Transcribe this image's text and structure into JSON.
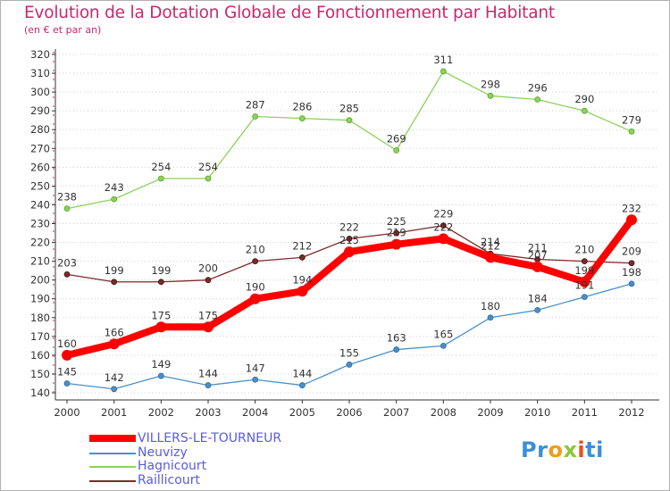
{
  "title": "Evolution de la Dotation Globale de Fonctionnement par Habitant",
  "subtitle": "(en € et par an)",
  "logo": {
    "p": "Pr",
    "o": "o",
    "x": "x",
    "i": "i",
    "t": "ti"
  },
  "colors": {
    "title": "#c8286e",
    "legend_text": "#5a5ae0",
    "axis": "#333333",
    "grid": "#cccccc",
    "villers": "#ff0000",
    "neuvizy": "#4a90c8",
    "hagnicourt": "#8bd25a",
    "raillicourt": "#7a2a2a"
  },
  "chart_data": {
    "type": "line",
    "title": "Evolution de la Dotation Globale de Fonctionnement par Habitant",
    "subtitle": "(en € et par an)",
    "x": [
      "2000",
      "2001",
      "2002",
      "2003",
      "2004",
      "2005",
      "2006",
      "2007",
      "2008",
      "2009",
      "2010",
      "2011",
      "2012"
    ],
    "ylim": [
      140,
      320
    ],
    "yticks": [
      140,
      150,
      160,
      170,
      180,
      190,
      200,
      210,
      220,
      230,
      240,
      250,
      260,
      270,
      280,
      290,
      300,
      310,
      320
    ],
    "grid": "horizontal dotted",
    "legend_position": "bottom-left",
    "series": [
      {
        "name": "VILLERS-LE-TOURNEUR",
        "color": "#ff0000",
        "width": 8,
        "values": [
          160,
          166,
          175,
          175,
          190,
          194,
          215,
          219,
          222,
          212,
          207,
          199,
          232
        ],
        "labels": [
          "160",
          "166",
          "175",
          "175",
          "190",
          "194",
          "215",
          "219",
          "222",
          "212",
          "207",
          "199",
          "232"
        ]
      },
      {
        "name": "Neuvizy",
        "color": "#4a90c8",
        "width": 1.3,
        "values": [
          145,
          142,
          149,
          144,
          147,
          144,
          155,
          163,
          165,
          180,
          184,
          191,
          198
        ],
        "labels": [
          "145",
          "142",
          "149",
          "144",
          "147",
          "144",
          "155",
          "163",
          "165",
          "180",
          "184",
          "191",
          "198"
        ]
      },
      {
        "name": "Hagnicourt",
        "color": "#8bd25a",
        "width": 1.3,
        "values": [
          238,
          243,
          254,
          254,
          287,
          286,
          285,
          269,
          311,
          298,
          296,
          290,
          279
        ],
        "labels": [
          "238",
          "243",
          "254",
          "254",
          "287",
          "286",
          "285",
          "269",
          "311",
          "298",
          "296",
          "290",
          "279"
        ]
      },
      {
        "name": "Raillicourt",
        "color": "#7a2a2a",
        "width": 1.3,
        "values": [
          203,
          199,
          199,
          200,
          210,
          212,
          222,
          225,
          229,
          214,
          211,
          210,
          209
        ],
        "labels": [
          "203",
          "199",
          "199",
          "200",
          "210",
          "212",
          "222",
          "225",
          "229",
          "214",
          "211",
          "210",
          "209"
        ]
      }
    ]
  }
}
